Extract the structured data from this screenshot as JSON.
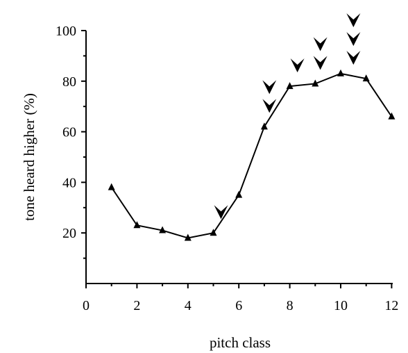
{
  "chart_data": {
    "type": "line",
    "xlabel": "pitch class",
    "ylabel": "tone heard higher (%)",
    "xlim": [
      0,
      12
    ],
    "ylim": [
      0,
      100
    ],
    "x_ticks": [
      0,
      2,
      4,
      6,
      8,
      10,
      12
    ],
    "x_minor_ticks": [
      1,
      3,
      5,
      7,
      9,
      11
    ],
    "y_ticks": [
      20,
      40,
      60,
      80,
      100
    ],
    "y_minor_ticks": [
      10,
      30,
      50,
      70,
      90
    ],
    "grid": false,
    "series": [
      {
        "x": [
          1,
          2,
          3,
          4,
          5,
          6,
          7,
          8,
          9,
          10,
          11,
          12
        ],
        "values": [
          38,
          23,
          21,
          18,
          20,
          35,
          62,
          78,
          79,
          83,
          81,
          66
        ],
        "marker": "triangle"
      }
    ],
    "arrow_annotations": [
      {
        "x": 5.3,
        "count": 1
      },
      {
        "x": 7.2,
        "count": 2
      },
      {
        "x": 8.3,
        "count": 1
      },
      {
        "x": 9.2,
        "count": 2
      },
      {
        "x": 10.5,
        "count": 3
      }
    ]
  }
}
